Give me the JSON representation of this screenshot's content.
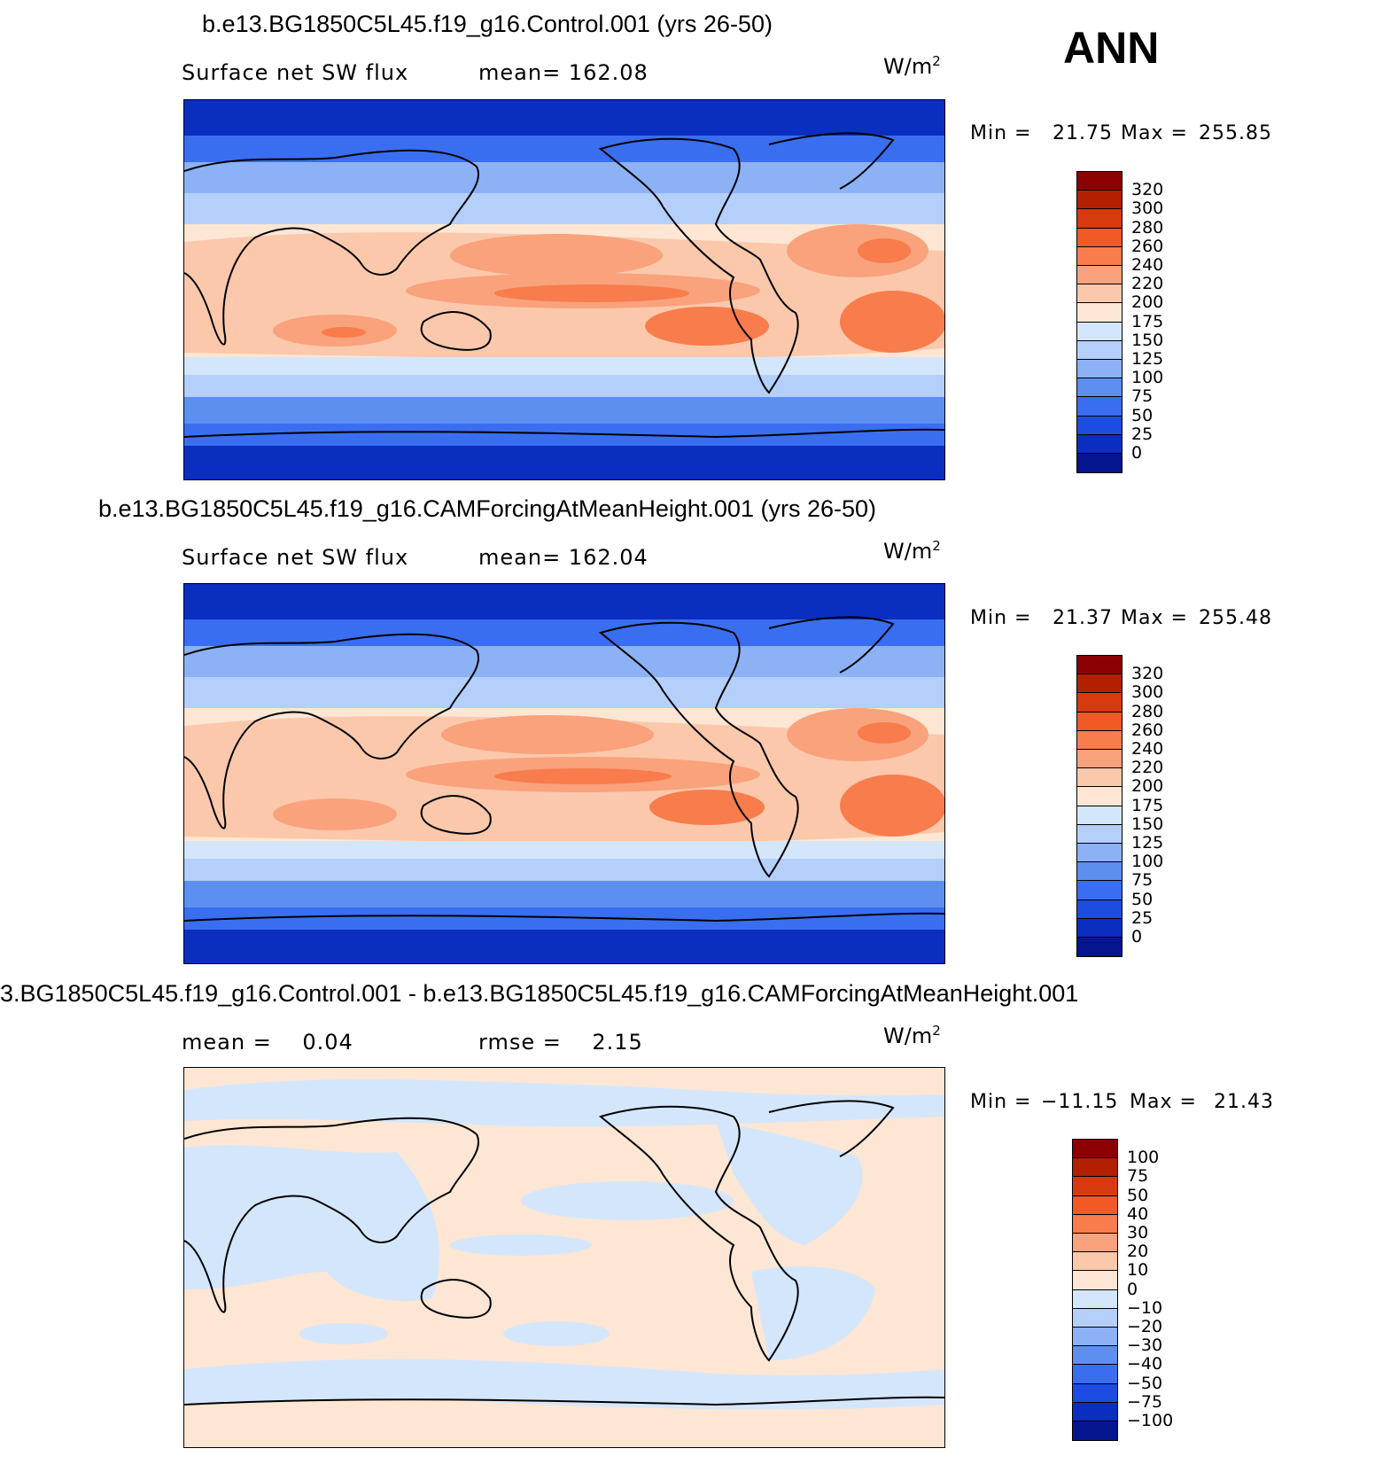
{
  "season": "ANN",
  "units_base": "W/m",
  "units_exp": "2",
  "panels": [
    {
      "title": "b.e13.BG1850C5L45.f19_g16.Control.001 (yrs 26-50)",
      "label_left": "Surface net SW flux",
      "label_right": "mean= 162.08",
      "min_label": "Min =",
      "min_value": "21.75",
      "max_label": "Max =",
      "max_value": "255.85",
      "colorbar": [
        "320",
        "300",
        "280",
        "260",
        "240",
        "220",
        "200",
        "175",
        "150",
        "125",
        "100",
        "75",
        "50",
        "25",
        "0"
      ]
    },
    {
      "title": "b.e13.BG1850C5L45.f19_g16.CAMForcingAtMeanHeight.001 (yrs 26-50)",
      "label_left": "Surface net SW flux",
      "label_right": "mean= 162.04",
      "min_label": "Min =",
      "min_value": "21.37",
      "max_label": "Max =",
      "max_value": "255.48",
      "colorbar": [
        "320",
        "300",
        "280",
        "260",
        "240",
        "220",
        "200",
        "175",
        "150",
        "125",
        "100",
        "75",
        "50",
        "25",
        "0"
      ]
    },
    {
      "title": "3.BG1850C5L45.f19_g16.Control.001 - b.e13.BG1850C5L45.f19_g16.CAMForcingAtMeanHeight.001",
      "label_left": "mean =    0.04",
      "label_right": "rmse =    2.15",
      "min_label": "Min =",
      "min_value": "−11.15",
      "max_label": "Max =",
      "max_value": "21.43",
      "colorbar": [
        "100",
        "75",
        "50",
        "40",
        "30",
        "20",
        "10",
        "0",
        "−10",
        "−20",
        "−30",
        "−40",
        "−50",
        "−75",
        "−100"
      ]
    }
  ],
  "colors": {
    "scale": [
      "#8b0000",
      "#b22000",
      "#d83a10",
      "#f25a25",
      "#f87c4c",
      "#f9a27c",
      "#fbc8ab",
      "#fde6d4",
      "#d4e6fb",
      "#b3cffa",
      "#8cb2f5",
      "#5c8ff0",
      "#3a6ef0",
      "#1c4ce0",
      "#0a2ec0",
      "#05158e"
    ],
    "diff_pos": "#fde6d4",
    "diff_neg": "#d4e6fb"
  }
}
